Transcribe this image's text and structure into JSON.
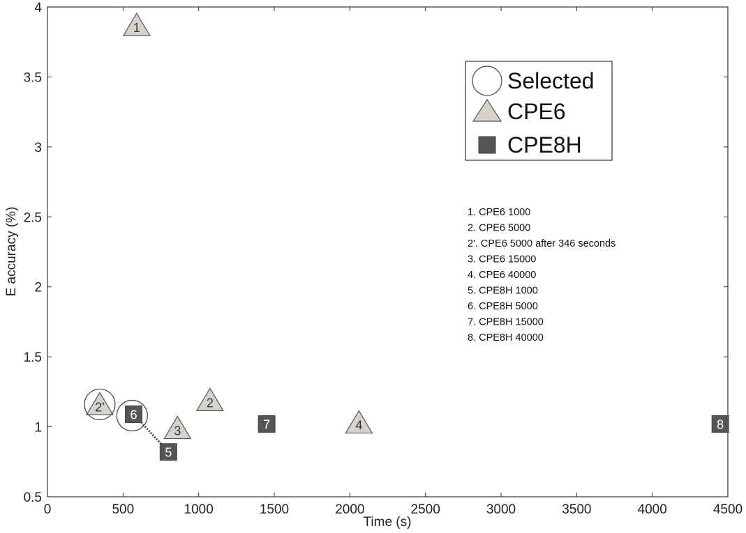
{
  "chart_data": {
    "type": "scatter",
    "xlabel": "Time (s)",
    "ylabel": "E accuracy (%)",
    "xlim": [
      0,
      4500
    ],
    "ylim": [
      0.5,
      4
    ],
    "x_ticks": [
      0,
      500,
      1000,
      1500,
      2000,
      2500,
      3000,
      3500,
      4000,
      4500
    ],
    "y_ticks": [
      0.5,
      1,
      1.5,
      2,
      2.5,
      3,
      3.5,
      4
    ],
    "y_tick_labels": [
      "0.5",
      "1",
      "1.5",
      "2",
      "2.5",
      "3",
      "3.5",
      "4"
    ],
    "grid": false,
    "legend_position": "top-right",
    "series": [
      {
        "name": "CPE6",
        "marker": "triangle",
        "color": "#d6d3cc",
        "points": [
          {
            "label": "1",
            "x": 590,
            "y": 3.87
          },
          {
            "label": "2",
            "x": 1075,
            "y": 1.19
          },
          {
            "label": "2'",
            "x": 346,
            "y": 1.16
          },
          {
            "label": "3",
            "x": 860,
            "y": 0.99
          },
          {
            "label": "4",
            "x": 2060,
            "y": 1.03
          }
        ]
      },
      {
        "name": "CPE8H",
        "marker": "square",
        "color": "#555555",
        "points": [
          {
            "label": "5",
            "x": 800,
            "y": 0.82
          },
          {
            "label": "6",
            "x": 570,
            "y": 1.09
          },
          {
            "label": "7",
            "x": 1450,
            "y": 1.02
          },
          {
            "label": "8",
            "x": 4450,
            "y": 1.02
          }
        ]
      }
    ],
    "selected": {
      "name": "Selected",
      "marker": "circle",
      "points": [
        {
          "x": 346,
          "y": 1.16
        },
        {
          "x": 560,
          "y": 1.08
        }
      ]
    },
    "connector": {
      "from": [
        570,
        1.09
      ],
      "to": [
        800,
        0.82
      ]
    },
    "notes": [
      "1. CPE6 1000",
      "2. CPE6 5000",
      "2'. CPE6 5000 after 346 seconds",
      "3. CPE6 15000",
      "4. CPE6 40000",
      "5. CPE8H 1000",
      "6. CPE8H 5000",
      "7. CPE8H 15000",
      "8. CPE8H 40000"
    ]
  }
}
